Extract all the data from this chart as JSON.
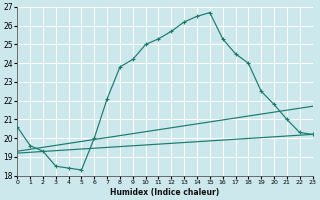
{
  "xlabel": "Humidex (Indice chaleur)",
  "xlim": [
    0,
    23
  ],
  "ylim": [
    18,
    27
  ],
  "yticks": [
    18,
    19,
    20,
    21,
    22,
    23,
    24,
    25,
    26,
    27
  ],
  "xticks": [
    0,
    1,
    2,
    3,
    4,
    5,
    6,
    7,
    8,
    9,
    10,
    11,
    12,
    13,
    14,
    15,
    16,
    17,
    18,
    19,
    20,
    21,
    22,
    23
  ],
  "bg_color": "#cce8ec",
  "grid_color": "#ffffff",
  "line_color": "#1a7a6e",
  "line1_x": [
    0,
    1,
    2,
    3,
    4,
    5,
    6,
    7,
    8,
    9,
    10,
    11,
    12,
    13,
    14,
    15,
    16,
    17,
    18,
    19,
    20,
    21,
    22,
    23
  ],
  "line1_y": [
    20.6,
    19.6,
    19.3,
    18.5,
    18.4,
    18.3,
    20.0,
    22.1,
    23.8,
    24.2,
    25.0,
    25.3,
    25.7,
    26.2,
    26.5,
    26.7,
    25.3,
    24.5,
    24.0,
    22.5,
    21.8,
    21.0,
    20.3,
    20.2
  ],
  "line2_x": [
    0,
    23
  ],
  "line2_y": [
    19.2,
    20.2
  ],
  "line3_x": [
    0,
    23
  ],
  "line3_y": [
    19.3,
    21.7
  ]
}
